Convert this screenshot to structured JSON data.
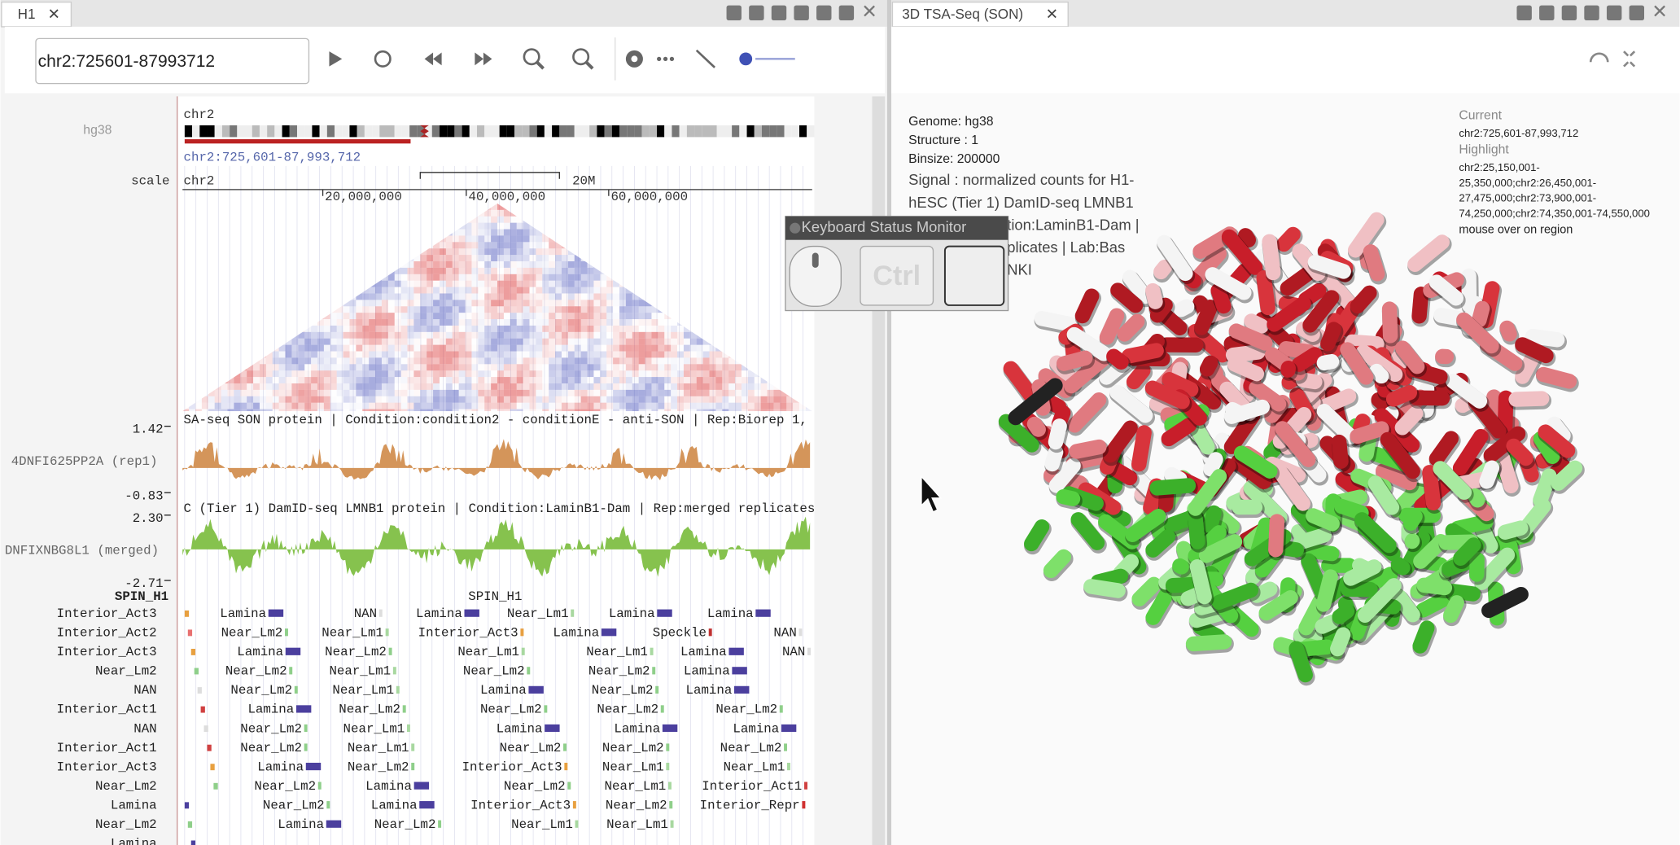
{
  "tabs": {
    "left": "H1",
    "right": "3D TSA-Seq (SON)"
  },
  "browser": {
    "locus": "chr2:725601-87993712",
    "genome": "hg38",
    "chrom": "chr2",
    "region": "chr2:725,601-87,993,712",
    "scale_label": "scale",
    "scale_chrom": "chr2",
    "scale_bar": "20M",
    "ruler": [
      "20,000,000",
      "40,000,000",
      "60,000,000"
    ]
  },
  "tracks": [
    {
      "name": "4DNFI625PP2A (rep1)",
      "title": "SA-seq SON protein | Condition:condition2 - conditionE - anti-SON | Rep:Biorep 1,",
      "max": "1.42",
      "min": "-0.83"
    },
    {
      "name": "DNFIXNBG8L1 (merged)",
      "title": "C (Tier 1) DamID-seq LMNB1 protein | Condition:LaminB1-Dam | Rep:merged replicates",
      "max": "2.30",
      "min": "-2.71"
    }
  ],
  "spin": {
    "left_title": "SPIN_H1",
    "center_title": "SPIN_H1",
    "rows": [
      {
        "label": "Interior_Act3",
        "items": [
          "Lamina",
          "NAN",
          "Lamina",
          "Near_Lm1",
          "Lamina",
          "Lamina"
        ]
      },
      {
        "label": "Interior_Act2",
        "items": [
          "Near_Lm2",
          "Near_Lm1",
          "Interior_Act3",
          "Lamina",
          "Speckle",
          "NAN"
        ]
      },
      {
        "label": "Interior_Act3",
        "items": [
          "Lamina",
          "Near_Lm2",
          "Near_Lm1",
          "Near_Lm1",
          "Lamina",
          "NAN"
        ]
      },
      {
        "label": "Near_Lm2",
        "items": [
          "Near_Lm2",
          "Near_Lm1",
          "Near_Lm2",
          "Near_Lm2",
          "Lamina"
        ]
      },
      {
        "label": "NAN",
        "items": [
          "Near_Lm2",
          "Near_Lm1",
          "Lamina",
          "Near_Lm2",
          "Lamina"
        ]
      },
      {
        "label": "Interior_Act1",
        "items": [
          "Lamina",
          "Near_Lm2",
          "Near_Lm2",
          "Near_Lm2",
          "Near_Lm2"
        ]
      },
      {
        "label": "NAN",
        "items": [
          "Near_Lm2",
          "Near_Lm1",
          "Lamina",
          "Lamina",
          "Lamina"
        ]
      },
      {
        "label": "Interior_Act1",
        "items": [
          "Near_Lm2",
          "Near_Lm1",
          "Near_Lm2",
          "Near_Lm2",
          "Near_Lm2"
        ]
      },
      {
        "label": "Interior_Act3",
        "items": [
          "Lamina",
          "Near_Lm2",
          "Interior_Act3",
          "Near_Lm1",
          "Near_Lm1"
        ]
      },
      {
        "label": "Near_Lm2",
        "items": [
          "Near_Lm2",
          "Lamina",
          "Near_Lm2",
          "Near_Lm1",
          "Interior_Act1"
        ]
      },
      {
        "label": "Lamina",
        "items": [
          "Near_Lm2",
          "Lamina",
          "Interior_Act3",
          "Near_Lm2",
          "Interior_Repr"
        ]
      },
      {
        "label": "Near_Lm2",
        "items": [
          "Lamina",
          "Near_Lm2",
          "Near_Lm1",
          "Near_Lm1"
        ]
      },
      {
        "label": "Lamina",
        "items": []
      }
    ]
  },
  "viewer3d": {
    "info": [
      "Genome: hg38",
      "Structure : 1",
      "Binsize: 200000"
    ],
    "signal": [
      "Signal : normalized counts for H1-",
      "hESC (Tier 1) DamID-seq LMNB1",
      "tion:LaminB1-Dam |",
      "plicates | Lab:Bas",
      "NKI"
    ],
    "current_label": "Current",
    "current": "chr2:725,601-87,993,712",
    "highlight_label": "Highlight",
    "highlight": [
      "chr2:25,150,001-",
      "25,350,000;chr2:26,450,001-",
      "27,475,000;chr2:73,900,001-",
      "74,250,000;chr2:74,350,001-74,550,000"
    ],
    "hover": "mouse over on region"
  },
  "keyboard_monitor": {
    "title": "Keyboard Status Monitor",
    "key": "Ctrl"
  }
}
